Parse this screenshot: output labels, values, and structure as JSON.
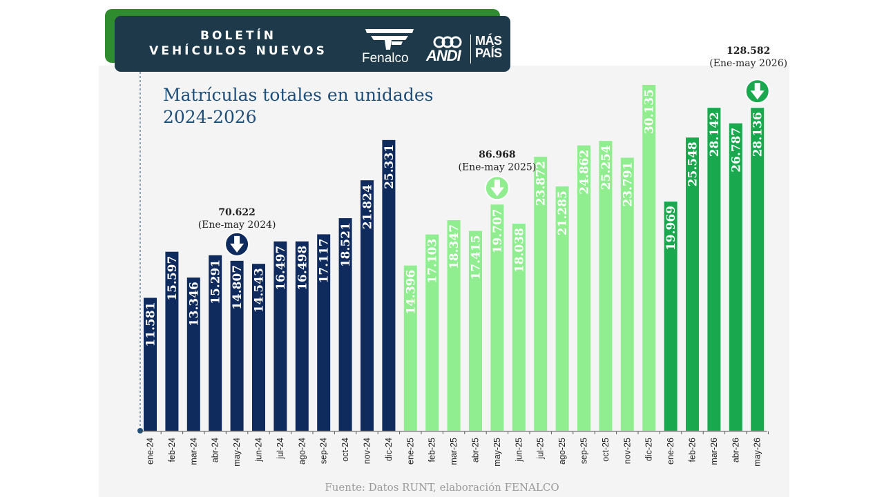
{
  "header": {
    "bulletin_line1": "BOLETÍN",
    "bulletin_line2": "VEHÍCULOS NUEVOS",
    "logos": {
      "fenalco": "Fenalco",
      "andi": "ANDI",
      "mas_pais_line1": "MÁS",
      "mas_pais_line2": "PAÍS"
    }
  },
  "source": "Fuente: Datos RUNT, elaboración FENALCO",
  "colors": {
    "navy": "#0f2a5c",
    "light_green": "#90ee90",
    "green": "#1aa84f",
    "header_bg": "#1e3a4a",
    "header_accent": "#2e8b2e",
    "title": "#1f4e79"
  },
  "chart_data": {
    "type": "bar",
    "title_line1": "Matrículas totales en unidades",
    "title_line2": "2024-2026",
    "xlabel": "",
    "ylabel": "",
    "ylim": [
      0,
      32000
    ],
    "grid": false,
    "categories": [
      "ene-24",
      "feb-24",
      "mar-24",
      "abr-24",
      "may-24",
      "jun-24",
      "jul-24",
      "ago-24",
      "sep-24",
      "oct-24",
      "nov-24",
      "dic-24",
      "ene-25",
      "feb-25",
      "mar-25",
      "abr-25",
      "may-25",
      "jun-25",
      "jul-25",
      "ago-25",
      "sep-25",
      "oct-25",
      "nov-25",
      "dic-25",
      "ene-26",
      "feb-26",
      "mar-26",
      "abr-26",
      "may-26"
    ],
    "values": [
      11581,
      15597,
      13346,
      15291,
      14807,
      14543,
      16497,
      16498,
      17117,
      18521,
      21824,
      25331,
      14396,
      17103,
      18347,
      17415,
      19707,
      18038,
      23872,
      21285,
      24862,
      25254,
      23791,
      30135,
      19969,
      25548,
      28142,
      26787,
      28136
    ],
    "value_labels": [
      "11.581",
      "15.597",
      "13.346",
      "15.291",
      "14.807",
      "14.543",
      "16.497",
      "16.498",
      "17.117",
      "18.521",
      "21.824",
      "25.331",
      "14.396",
      "17.103",
      "18.347",
      "17.415",
      "19.707",
      "18.038",
      "23.872",
      "21.285",
      "24.862",
      "25.254",
      "23.791",
      "30.135",
      "19.969",
      "25.548",
      "28.142",
      "26.787",
      "28.136"
    ],
    "groups": [
      {
        "year": "2024",
        "start": 0,
        "end": 11,
        "color": "#0f2a5c"
      },
      {
        "year": "2025",
        "start": 12,
        "end": 23,
        "color": "#90ee90"
      },
      {
        "year": "2026",
        "start": 24,
        "end": 28,
        "color": "#1aa84f"
      }
    ],
    "annotations": [
      {
        "total": "70.622",
        "period": "(Ene-may 2024)",
        "bar_index": 4,
        "arrow_color": "#0f2a5c"
      },
      {
        "total": "86.968",
        "period": "(Ene-may 2025)",
        "bar_index": 16,
        "arrow_color": "#90ee90"
      },
      {
        "total": "128.582",
        "period": "(Ene-may 2026)",
        "bar_index": 28,
        "arrow_color": "#1aa84f"
      }
    ]
  }
}
